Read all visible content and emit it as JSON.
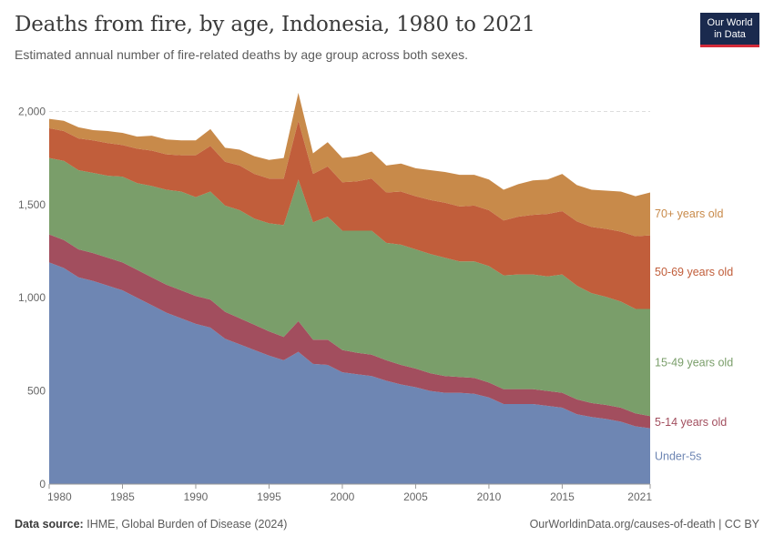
{
  "header": {
    "title": "Deaths from fire, by age, Indonesia, 1980 to 2021",
    "subtitle": "Estimated annual number of fire-related deaths by age group across both sexes.",
    "logo_line1": "Our World",
    "logo_line2": "in Data"
  },
  "footer": {
    "source_label": "Data source:",
    "source_text": "IHME, Global Burden of Disease (2024)",
    "link": "OurWorldinData.org/causes-of-death | CC BY"
  },
  "colors": {
    "under5": "#6e86b3",
    "age5_14": "#a24e5e",
    "age15_49": "#7a9e6a",
    "age50_69": "#c15e3b",
    "age70": "#c88a4a"
  },
  "chart_data": {
    "type": "area",
    "stacked": true,
    "x": [
      1980,
      1981,
      1982,
      1983,
      1984,
      1985,
      1986,
      1987,
      1988,
      1989,
      1990,
      1991,
      1992,
      1993,
      1994,
      1995,
      1996,
      1997,
      1998,
      1999,
      2000,
      2001,
      2002,
      2003,
      2004,
      2005,
      2006,
      2007,
      2008,
      2009,
      2010,
      2011,
      2012,
      2013,
      2014,
      2015,
      2016,
      2017,
      2018,
      2019,
      2020,
      2021
    ],
    "x_ticks": [
      "1980",
      "1985",
      "1990",
      "1995",
      "2000",
      "2005",
      "2010",
      "2015",
      "2021"
    ],
    "y_ticks": [
      "0",
      "500",
      "1,000",
      "1,500",
      "2,000"
    ],
    "ylim": [
      0,
      2100
    ],
    "grid": "horizontal dashed",
    "series": [
      {
        "name": "Under-5s",
        "color": "#6e86b3",
        "values": [
          1190,
          1160,
          1110,
          1090,
          1065,
          1040,
          1000,
          960,
          920,
          890,
          860,
          840,
          780,
          750,
          720,
          690,
          665,
          710,
          645,
          640,
          600,
          590,
          580,
          555,
          535,
          520,
          500,
          490,
          490,
          485,
          465,
          430,
          430,
          430,
          420,
          410,
          375,
          360,
          350,
          335,
          310,
          300
        ]
      },
      {
        "name": "5-14 years old",
        "color": "#a24e5e",
        "values": [
          150,
          150,
          150,
          150,
          150,
          150,
          150,
          150,
          150,
          150,
          150,
          150,
          145,
          140,
          135,
          130,
          125,
          165,
          130,
          135,
          120,
          115,
          115,
          110,
          105,
          100,
          95,
          90,
          85,
          85,
          80,
          80,
          80,
          80,
          80,
          80,
          80,
          75,
          75,
          75,
          70,
          65
        ]
      },
      {
        "name": "15-49 years old",
        "color": "#7a9e6a",
        "values": [
          410,
          425,
          425,
          430,
          440,
          460,
          465,
          490,
          510,
          530,
          530,
          580,
          570,
          580,
          570,
          580,
          600,
          760,
          630,
          660,
          640,
          655,
          665,
          630,
          645,
          640,
          640,
          635,
          620,
          625,
          625,
          610,
          615,
          615,
          615,
          635,
          610,
          590,
          580,
          570,
          560,
          575
        ]
      },
      {
        "name": "50-69 years old",
        "color": "#c15e3b",
        "values": [
          160,
          160,
          170,
          175,
          175,
          170,
          185,
          190,
          190,
          195,
          225,
          245,
          235,
          240,
          240,
          240,
          250,
          315,
          260,
          270,
          260,
          265,
          280,
          270,
          285,
          285,
          290,
          295,
          295,
          300,
          300,
          295,
          310,
          320,
          335,
          340,
          345,
          355,
          365,
          375,
          390,
          395
        ]
      },
      {
        "name": "70+ years old",
        "color": "#c88a4a",
        "values": [
          50,
          55,
          60,
          55,
          65,
          65,
          65,
          80,
          80,
          80,
          80,
          90,
          75,
          85,
          95,
          100,
          110,
          150,
          110,
          130,
          130,
          135,
          145,
          145,
          150,
          150,
          160,
          165,
          170,
          165,
          165,
          165,
          175,
          185,
          185,
          200,
          195,
          200,
          205,
          215,
          215,
          230
        ]
      }
    ]
  }
}
